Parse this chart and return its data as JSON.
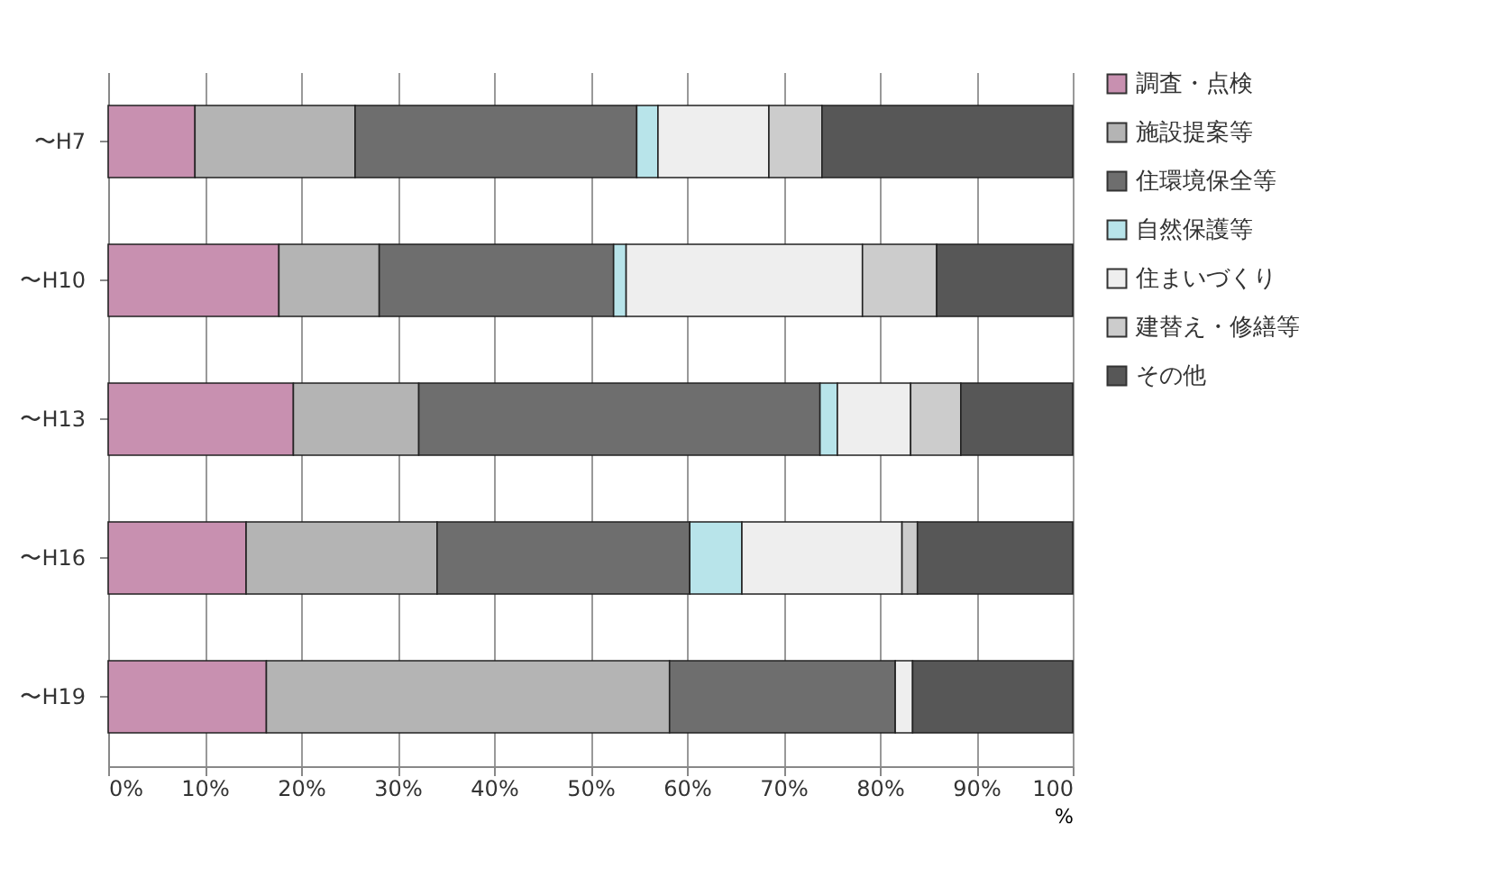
{
  "chart_data": {
    "type": "bar",
    "orientation": "horizontal",
    "stacked": true,
    "categories": [
      "〜H7",
      "〜H10",
      "〜H13",
      "〜H16",
      "〜H19"
    ],
    "series": [
      {
        "name": "調査・点検",
        "color": "#c890b0",
        "values": [
          9,
          17.7,
          19.2,
          14.3,
          16.4
        ]
      },
      {
        "name": "施設提案等",
        "color": "#b4b4b4",
        "values": [
          16.6,
          10.4,
          13,
          19.8,
          41.8
        ]
      },
      {
        "name": "住環境保全等",
        "color": "#6e6e6e",
        "values": [
          29.2,
          24.3,
          41.6,
          26.2,
          23.4
        ]
      },
      {
        "name": "自然保護等",
        "color": "#b8e4ea",
        "values": [
          2.2,
          1.3,
          1.8,
          5.4,
          null
        ]
      },
      {
        "name": "住まいづくり",
        "color": "#eeeeee",
        "values": [
          11.5,
          24.5,
          7.6,
          16.6,
          1.8
        ]
      },
      {
        "name": "建替え・修繕等",
        "color": "#cccccc",
        "values": [
          5.5,
          7.7,
          5.2,
          1.6,
          null
        ]
      },
      {
        "name": "その他",
        "color": "#575757",
        "values": [
          26,
          14.1,
          11.6,
          16.1,
          16.6
        ]
      }
    ],
    "xlim": [
      0,
      100
    ],
    "xticks": [
      {
        "value": 0,
        "label": "0%"
      },
      {
        "value": 10,
        "label": "10%"
      },
      {
        "value": 20,
        "label": "20%"
      },
      {
        "value": 30,
        "label": "30%"
      },
      {
        "value": 40,
        "label": "40%"
      },
      {
        "value": 50,
        "label": "50%"
      },
      {
        "value": 60,
        "label": "60%"
      },
      {
        "value": 70,
        "label": "70%"
      },
      {
        "value": 80,
        "label": "80%"
      },
      {
        "value": 90,
        "label": "90%"
      },
      {
        "value": 100,
        "label": "100"
      }
    ],
    "xlabel": "%",
    "grid": "x",
    "legend": "right"
  }
}
